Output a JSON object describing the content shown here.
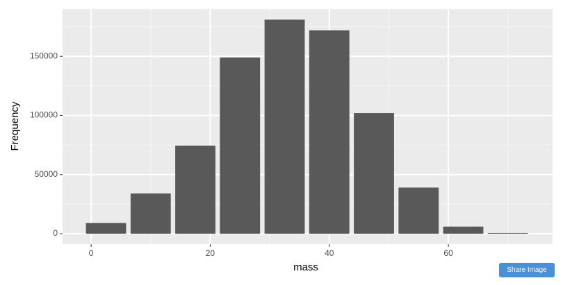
{
  "chart_data": {
    "type": "histogram",
    "xlabel": "mass",
    "ylabel": "Frequency",
    "bins": [
      -1.25,
      6.25,
      13.75,
      21.25,
      28.75,
      36.25,
      43.75,
      51.25,
      58.75,
      66.25,
      73.75
    ],
    "values": [
      9000,
      34000,
      74500,
      149000,
      181000,
      172000,
      102000,
      39000,
      6000,
      600
    ],
    "color": "#595959",
    "xlim": [
      -4.8,
      77.5
    ],
    "xticks": [
      0,
      20,
      40,
      60
    ],
    "x_minor_ticks": [
      10,
      30,
      50,
      70
    ],
    "ylim": [
      -8800,
      190000
    ],
    "yticks": [
      0,
      50000,
      100000,
      150000
    ],
    "y_minor_ticks": [
      25000,
      75000,
      125000,
      175000
    ],
    "grid": true
  },
  "button": {
    "label": "Share Image"
  }
}
